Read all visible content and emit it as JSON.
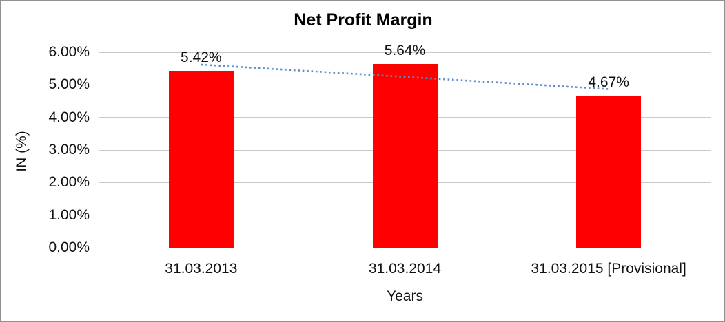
{
  "chart_data": {
    "type": "bar",
    "title": "Net Profit Margin",
    "xlabel": "Years",
    "ylabel": "IN (%)",
    "categories": [
      "31.03.2013",
      "31.03.2014",
      "31.03.2015 [Provisional]"
    ],
    "values": [
      5.42,
      5.64,
      4.67
    ],
    "data_labels": [
      "5.42%",
      "5.64%",
      "4.67%"
    ],
    "ylim": [
      0,
      6
    ],
    "ytick_step": 1,
    "ytick_labels": [
      "0.00%",
      "1.00%",
      "2.00%",
      "3.00%",
      "4.00%",
      "5.00%",
      "6.00%"
    ],
    "grid": true,
    "legend": "none",
    "bar_color": "#ff0000",
    "gridline_color": "#c9c9c9",
    "text_color": "#111111",
    "trendline": {
      "type": "linear",
      "style": "dotted",
      "color": "#5b8fcc",
      "start_value": 5.62,
      "end_value": 4.87
    }
  }
}
